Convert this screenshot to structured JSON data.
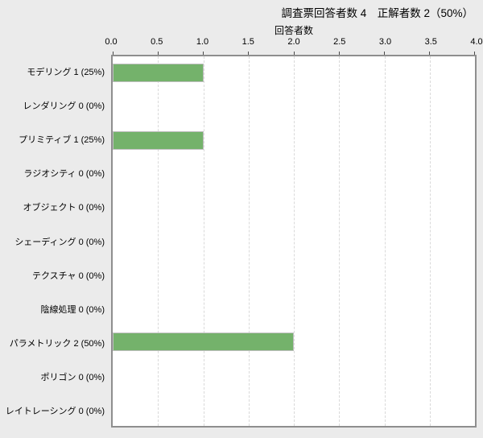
{
  "chart_data": {
    "type": "bar",
    "orientation": "horizontal",
    "title": "調査票回答者数 4　正解者数 2（50%）",
    "xlabel": "回答者数",
    "categories": [
      "モデリング",
      "レンダリング",
      "プリミティブ",
      "ラジオシティ",
      "オブジェクト",
      "シェーディング",
      "テクスチャ",
      "陰線処理",
      "パラメトリック",
      "ポリゴン",
      "レイトレーシング"
    ],
    "values": [
      1,
      0,
      1,
      0,
      0,
      0,
      0,
      0,
      2,
      0,
      0
    ],
    "percentages": [
      25,
      0,
      25,
      0,
      0,
      0,
      0,
      0,
      50,
      0,
      0
    ],
    "category_labels": [
      "モデリング 1 (25%)",
      "レンダリング 0 (0%)",
      "プリミティブ 1 (25%)",
      "ラジオシティ 0 (0%)",
      "オブジェクト 0 (0%)",
      "シェーディング 0 (0%)",
      "テクスチャ 0 (0%)",
      "陰線処理 0 (0%)",
      "パラメトリック 2 (50%)",
      "ポリゴン 0 (0%)",
      "レイトレーシング 0 (0%)"
    ],
    "xlim": [
      0,
      4
    ],
    "xticks": [
      0,
      0.5,
      1,
      1.5,
      2,
      2.5,
      3,
      3.5,
      4
    ],
    "xtick_labels": [
      "0.0",
      "0.5",
      "1.0",
      "1.5",
      "2.0",
      "2.5",
      "3.0",
      "3.5",
      "4.0"
    ],
    "grid": "dashed-vertical",
    "legend": "none",
    "colors": {
      "bar_fill": "#74b26b",
      "bar_border": "#bfbfbf",
      "plot_background": "#ffffff",
      "page_background": "#ebebeb",
      "plot_border": "#8e8e8e",
      "gridline": "#d9d9d9",
      "text": "#000000"
    }
  }
}
